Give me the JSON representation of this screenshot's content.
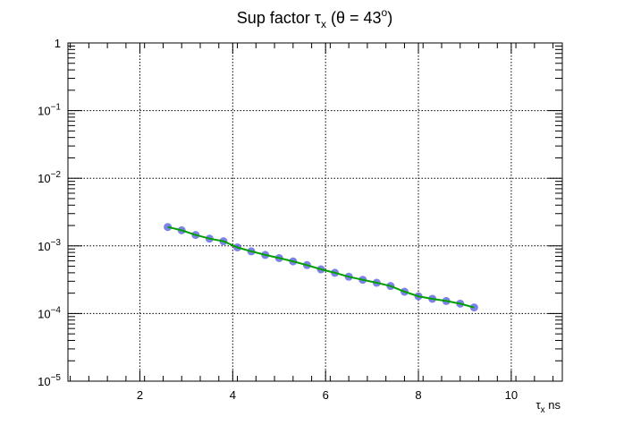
{
  "chart_data": {
    "type": "scatter",
    "title": {
      "main": "Sup factor ",
      "symbol": "τ",
      "symbol_sub": "x",
      "rest": " (θ = 43",
      "sup": "o",
      "close": ")"
    },
    "xlabel": {
      "symbol": "τ",
      "sub": "x",
      "unit": " ns"
    },
    "ylabel": "",
    "xlim": [
      0.45,
      11.1
    ],
    "ylim": [
      1e-05,
      1
    ],
    "yscale": "log",
    "grid": true,
    "x_ticks": [
      2,
      4,
      6,
      8,
      10
    ],
    "x_tick_labels": [
      "2",
      "4",
      "6",
      "8",
      "10"
    ],
    "y_ticks": [
      {
        "value": 1,
        "base": "1",
        "exp": ""
      },
      {
        "value": 0.1,
        "base": "10",
        "exp": "−1"
      },
      {
        "value": 0.01,
        "base": "10",
        "exp": "−2"
      },
      {
        "value": 0.001,
        "base": "10",
        "exp": "−3"
      },
      {
        "value": 0.0001,
        "base": "10",
        "exp": "−4"
      },
      {
        "value": 1e-05,
        "base": "10",
        "exp": "−5"
      }
    ],
    "series": [
      {
        "marker_color": "#5b64e0",
        "line_color": "#00a000",
        "x": [
          2.6,
          2.9,
          3.2,
          3.5,
          3.8,
          4.1,
          4.4,
          4.7,
          5.0,
          5.3,
          5.6,
          5.9,
          6.2,
          6.5,
          6.8,
          7.1,
          7.4,
          7.7,
          8.0,
          8.3,
          8.6,
          8.9,
          9.2
        ],
        "y": [
          0.0019,
          0.0017,
          0.00145,
          0.00128,
          0.00117,
          0.00095,
          0.00083,
          0.000735,
          0.00066,
          0.00059,
          0.00052,
          0.00045,
          0.0004,
          0.00035,
          0.000315,
          0.000285,
          0.000255,
          0.00021,
          0.00018,
          0.000165,
          0.000153,
          0.00014,
          0.000123
        ]
      }
    ]
  }
}
